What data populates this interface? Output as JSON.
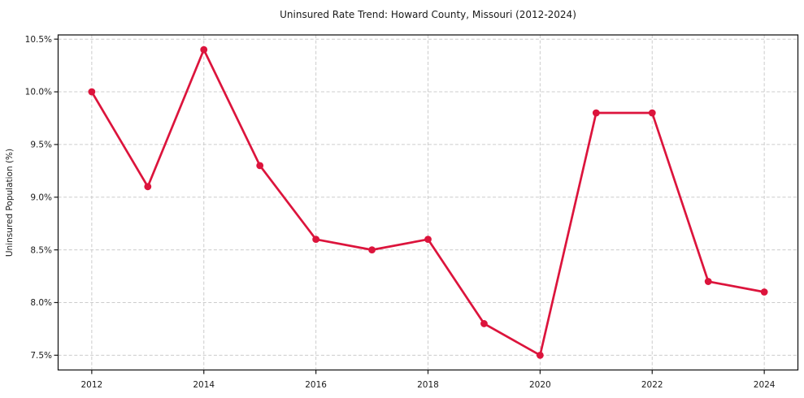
{
  "figure": {
    "background": "#ffffff"
  },
  "chart_data": {
    "type": "line",
    "title": "Uninsured Rate Trend: Howard County, Missouri (2012-2024)",
    "xlabel": "",
    "ylabel": "Uninsured Population (%)",
    "x": [
      2012,
      2013,
      2014,
      2015,
      2016,
      2017,
      2018,
      2019,
      2020,
      2021,
      2022,
      2023,
      2024
    ],
    "values": [
      10.0,
      9.1,
      10.4,
      9.3,
      8.6,
      8.5,
      8.6,
      7.8,
      7.5,
      9.8,
      9.8,
      8.2,
      8.1
    ],
    "x_ticks": [
      2012,
      2014,
      2016,
      2018,
      2020,
      2022,
      2024
    ],
    "y_ticks": [
      7.5,
      8.0,
      8.5,
      9.0,
      9.5,
      10.0,
      10.5
    ],
    "y_tick_suffix": "%",
    "y_tick_decimals": 1,
    "xlim": [
      2011.4,
      2024.6
    ],
    "ylim": [
      7.36,
      10.54
    ],
    "grid": true,
    "legend": null,
    "line_color": "#dc143c",
    "marker": "circle",
    "grid_color": "#cccccc",
    "spine_color": "#1a1a1a",
    "text_color": "#1a1a1a"
  }
}
